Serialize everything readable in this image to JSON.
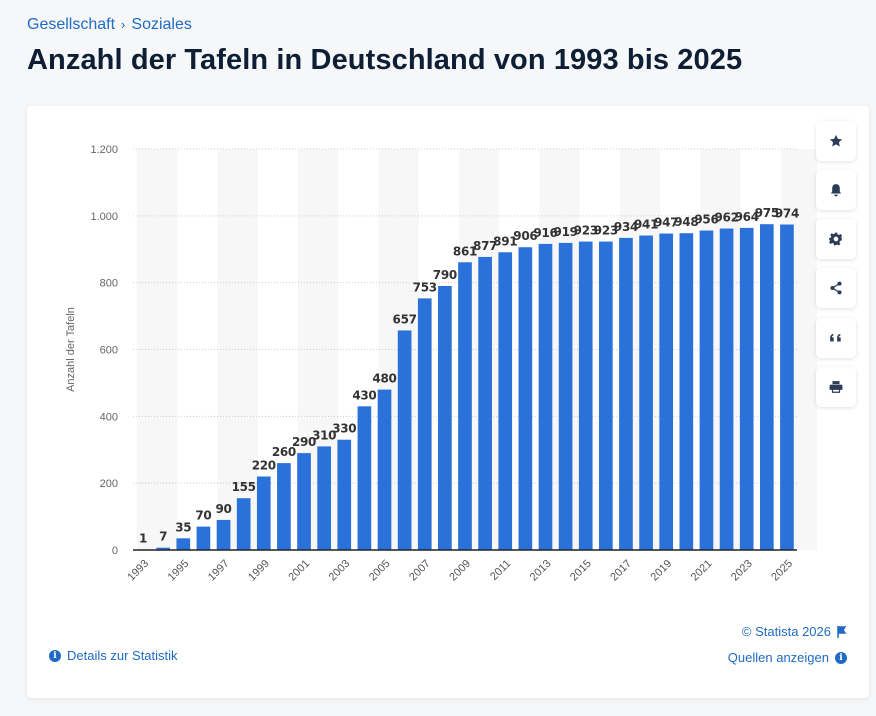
{
  "breadcrumb": {
    "items": [
      "Gesellschaft",
      "Soziales"
    ],
    "separator": "›"
  },
  "page_title": "Anzahl der Tafeln in Deutschland von 1993 bis 2025",
  "sidebar_actions": [
    {
      "name": "favorite",
      "icon": "star-icon"
    },
    {
      "name": "notification",
      "icon": "bell-icon"
    },
    {
      "name": "settings",
      "icon": "gear-icon"
    },
    {
      "name": "share",
      "icon": "share-icon"
    },
    {
      "name": "cite",
      "icon": "quote-icon"
    },
    {
      "name": "print",
      "icon": "print-icon"
    }
  ],
  "footer": {
    "details_label": "Details zur Statistik",
    "copyright": "© Statista 2026",
    "sources_label": "Quellen anzeigen"
  },
  "colors": {
    "bar": "#2a72d9",
    "link": "#1f6bc4",
    "title": "#0d1e35"
  },
  "chart_data": {
    "type": "bar",
    "title": "",
    "xlabel": "",
    "ylabel": "Anzahl der Tafeln",
    "ylim": [
      0,
      1200
    ],
    "yticks": [
      0,
      200,
      400,
      600,
      800,
      1000,
      1200
    ],
    "ytick_labels": [
      "0",
      "200",
      "400",
      "600",
      "800",
      "1.000",
      "1.200"
    ],
    "grid": true,
    "categories": [
      "1993",
      "1994",
      "1995",
      "1996",
      "1997",
      "1998",
      "1999",
      "2000",
      "2001",
      "2002",
      "2003",
      "2004",
      "2005",
      "2006",
      "2007",
      "2008",
      "2009",
      "2010",
      "2011",
      "2012",
      "2013",
      "2014",
      "2015",
      "2016",
      "2017",
      "2018",
      "2019",
      "2020",
      "2021",
      "2022",
      "2023",
      "2024",
      "2025"
    ],
    "xtick_labels_shown": [
      "1993",
      "1995",
      "1997",
      "1999",
      "2001",
      "2003",
      "2005",
      "2007",
      "2009",
      "2011",
      "2013",
      "2015",
      "2017",
      "2019",
      "2021",
      "2023",
      "2025"
    ],
    "values": [
      1,
      7,
      35,
      70,
      90,
      155,
      220,
      260,
      290,
      310,
      330,
      430,
      480,
      657,
      753,
      790,
      861,
      877,
      891,
      906,
      916,
      919,
      923,
      923,
      934,
      941,
      947,
      948,
      956,
      962,
      964,
      975,
      974
    ]
  }
}
